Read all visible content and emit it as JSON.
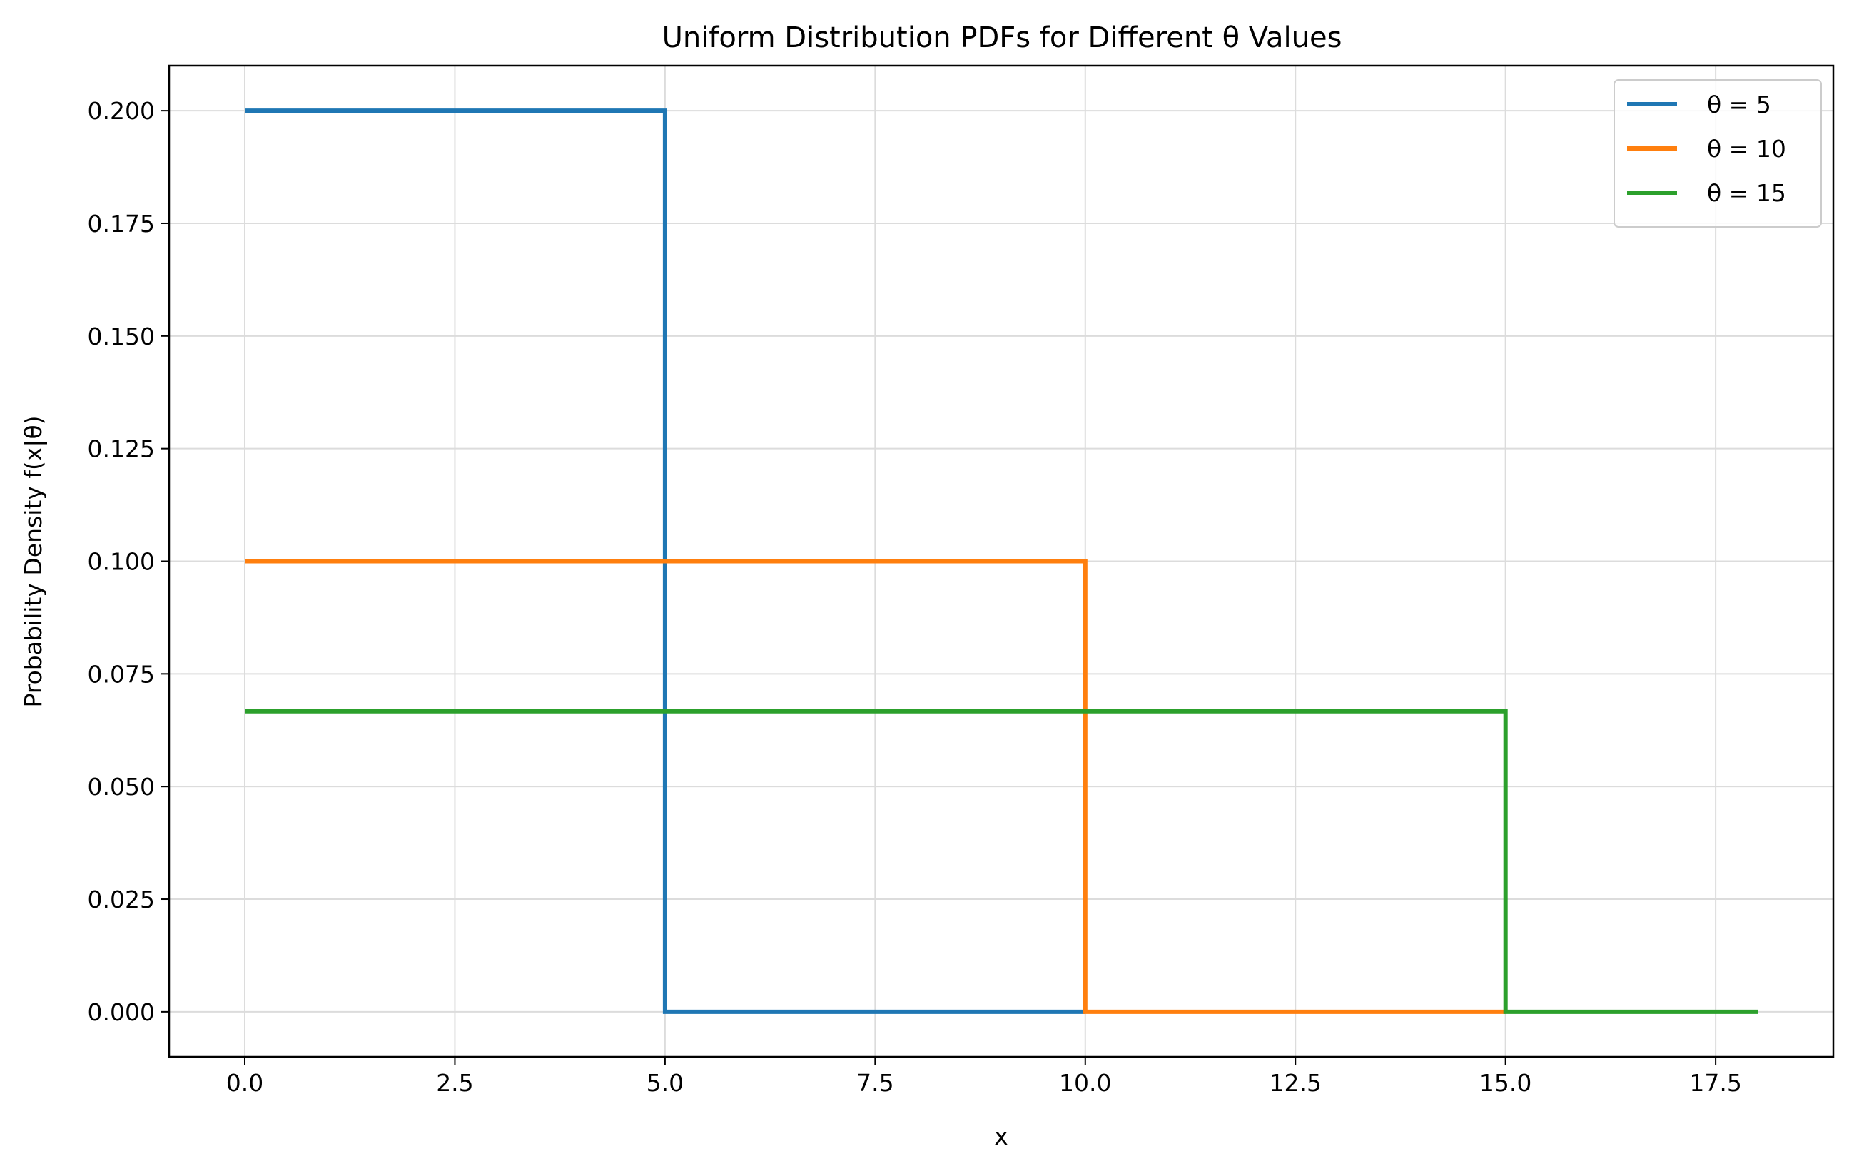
{
  "chart_data": {
    "type": "line",
    "title": "Uniform Distribution PDFs for Different θ Values",
    "xlabel": "x",
    "ylabel": "Probability Density f(x|θ)",
    "xlim": [
      -0.9,
      18.9
    ],
    "ylim": [
      -0.01,
      0.21
    ],
    "x_ticks": [
      0,
      2.5,
      5,
      7.5,
      10,
      12.5,
      15,
      17.5
    ],
    "x_tick_labels": [
      "0.0",
      "2.5",
      "5.0",
      "7.5",
      "10.0",
      "12.5",
      "15.0",
      "17.5"
    ],
    "y_ticks": [
      0,
      0.025,
      0.05,
      0.075,
      0.1,
      0.125,
      0.15,
      0.175,
      0.2
    ],
    "y_tick_labels": [
      "0.000",
      "0.025",
      "0.050",
      "0.075",
      "0.100",
      "0.125",
      "0.150",
      "0.175",
      "0.200"
    ],
    "grid": true,
    "legend_position": "top-right",
    "series": [
      {
        "name": "θ = 5",
        "color": "#1f77b4",
        "x": [
          0,
          5,
          5,
          10
        ],
        "y": [
          0.2,
          0.2,
          0,
          0
        ]
      },
      {
        "name": "θ = 10",
        "color": "#ff7f0e",
        "x": [
          0,
          10,
          10,
          15
        ],
        "y": [
          0.1,
          0.1,
          0,
          0
        ]
      },
      {
        "name": "θ = 15",
        "color": "#2ca02c",
        "x": [
          0,
          15,
          15,
          18
        ],
        "y": [
          0.0667,
          0.0667,
          0,
          0
        ]
      }
    ]
  }
}
